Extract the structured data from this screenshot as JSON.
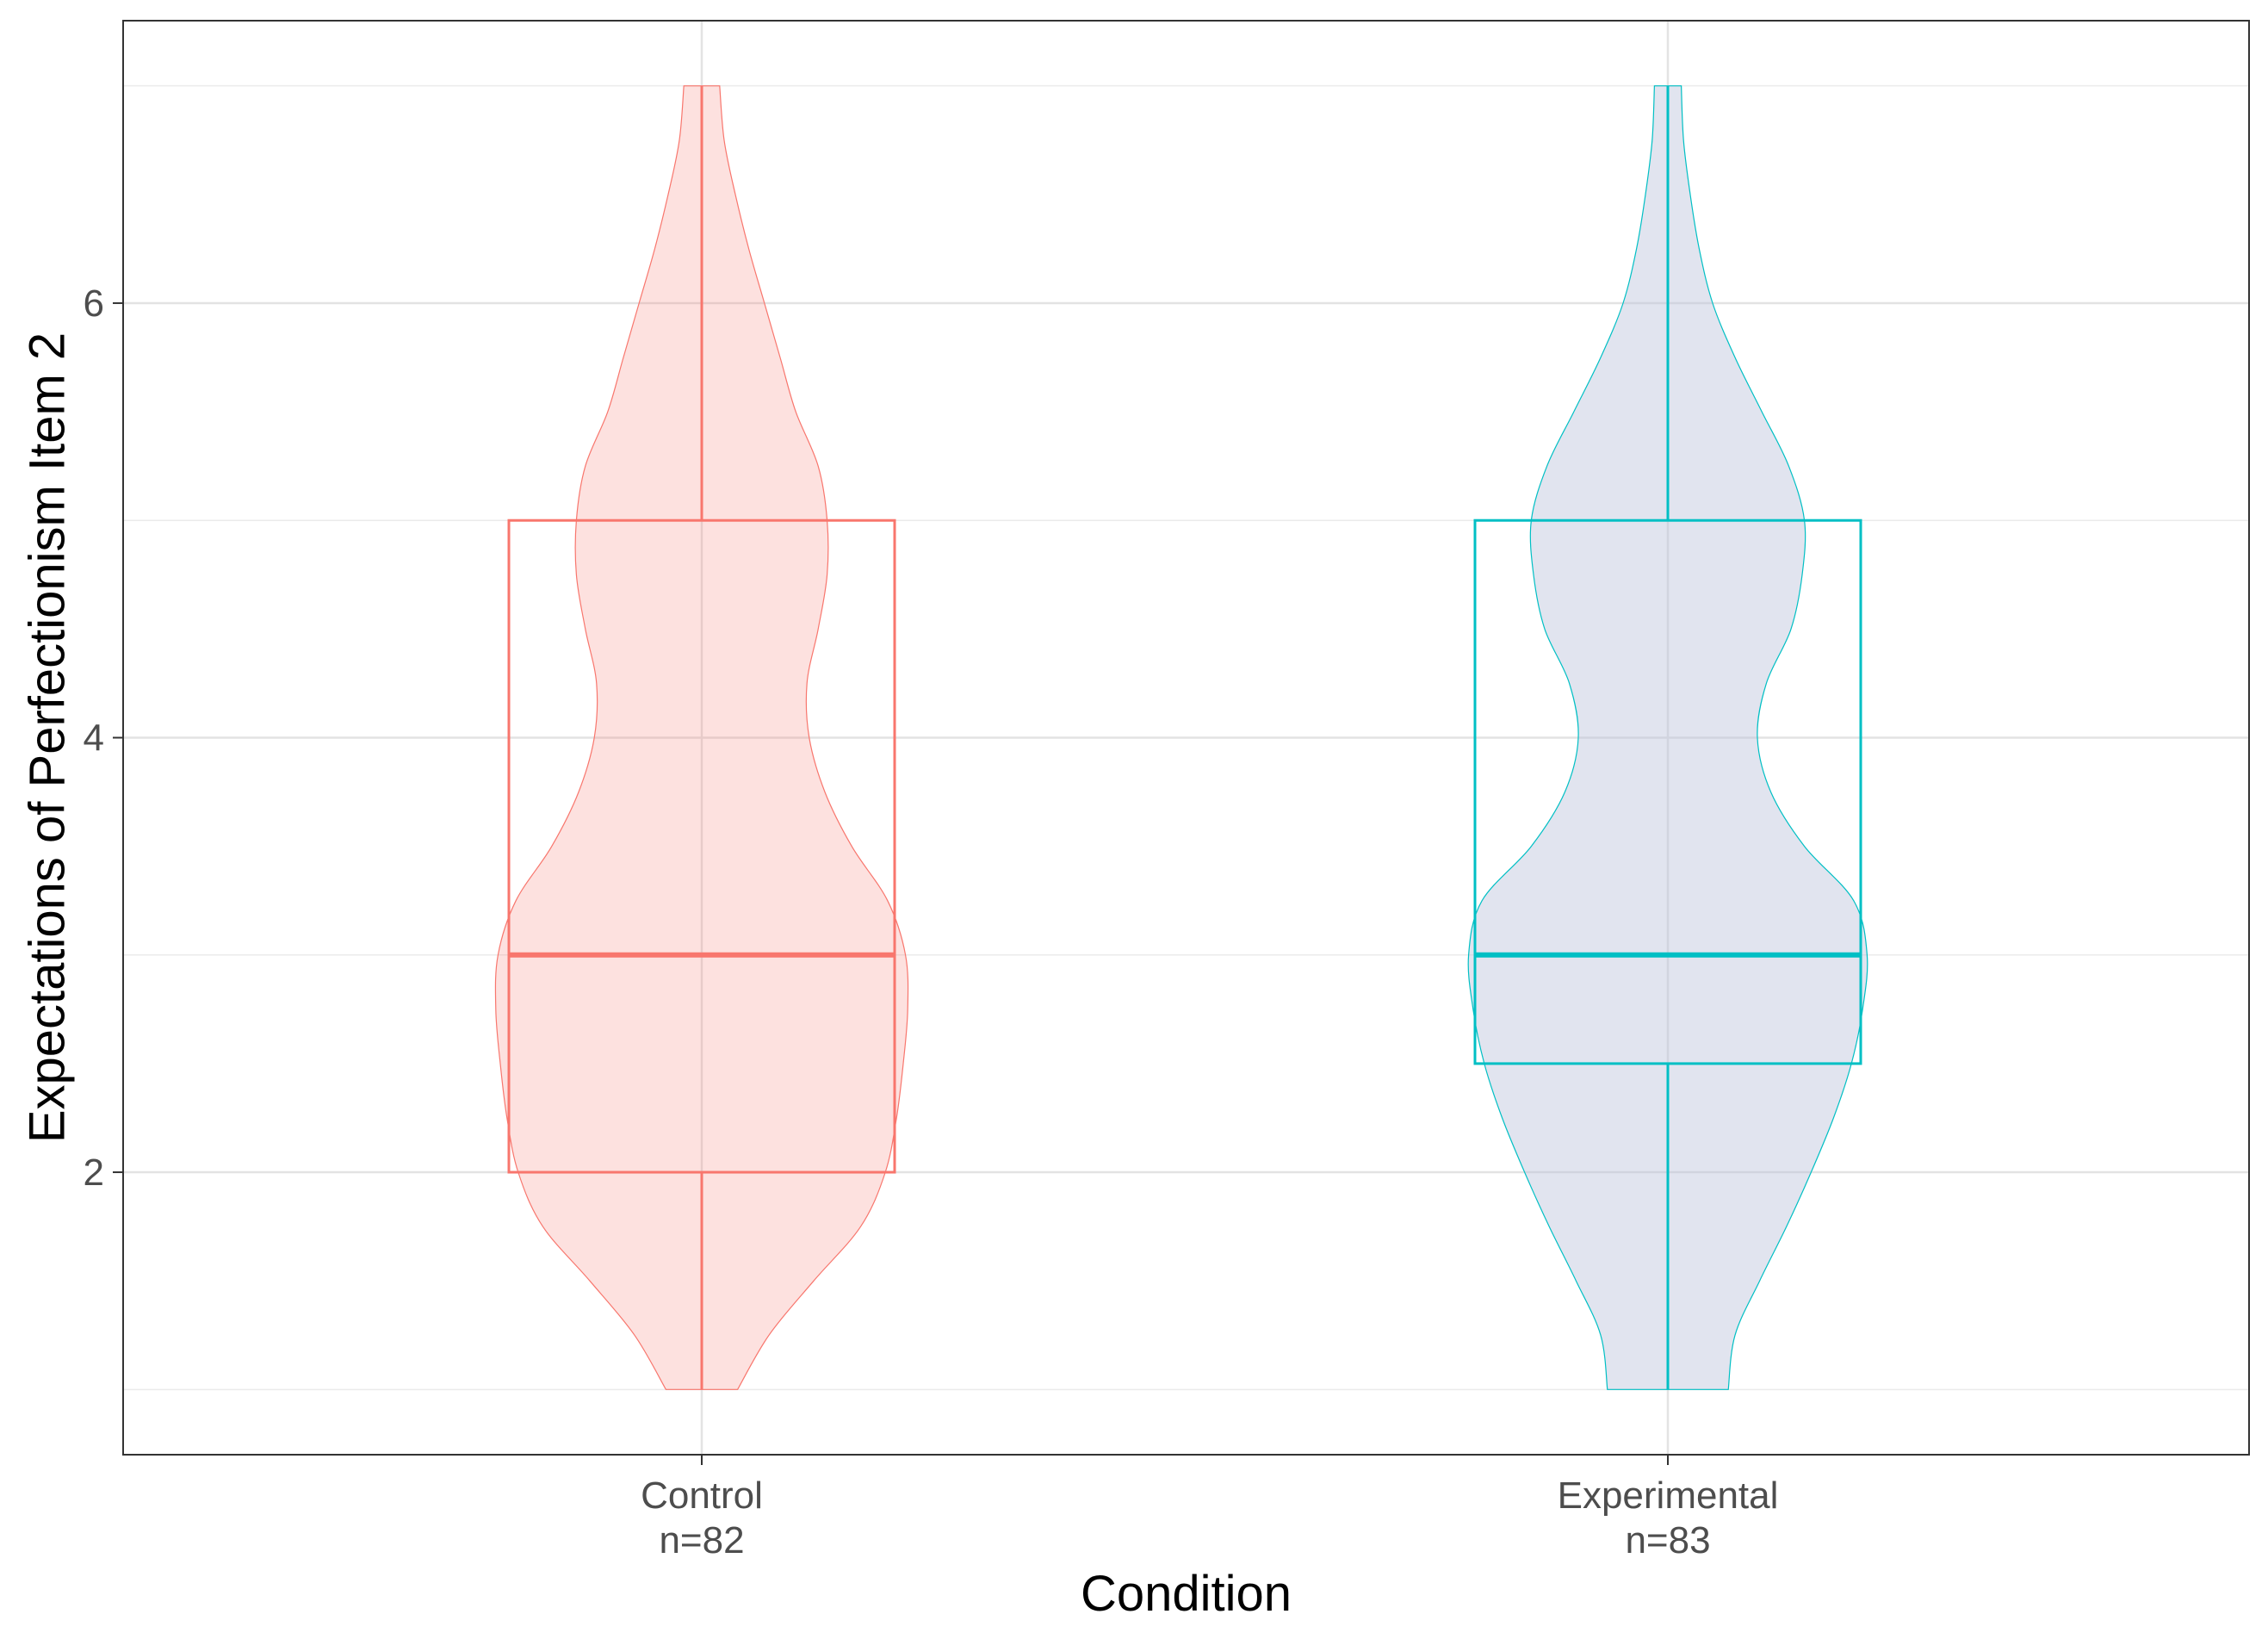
{
  "chart_data": {
    "type": "violin",
    "xlabel": "Condition",
    "ylabel": "Expectations of Perfectionism Item 2",
    "ylim": [
      0.7,
      7.3
    ],
    "y_ticks": [
      2,
      4,
      6
    ],
    "y_tick_labels": [
      "2",
      "4",
      "6"
    ],
    "y_minor_gridlines": [
      1,
      3,
      5,
      7
    ],
    "grid": true,
    "legend": "none",
    "categories": [
      "Control",
      "Experimental"
    ],
    "groups": [
      {
        "name": "Control",
        "count_label": "n=82",
        "color": "#F8766D",
        "fill": "#F8766D",
        "fill_opacity": 0.22,
        "box": {
          "whisker_low": 1,
          "q1": 2,
          "median": 3,
          "q3": 5,
          "whisker_high": 7
        },
        "density": [
          [
            1.0,
            0.16
          ],
          [
            1.25,
            0.3
          ],
          [
            1.5,
            0.5
          ],
          [
            1.75,
            0.71
          ],
          [
            2.0,
            0.82
          ],
          [
            2.25,
            0.87
          ],
          [
            2.5,
            0.9
          ],
          [
            2.75,
            0.92
          ],
          [
            3.0,
            0.91
          ],
          [
            3.25,
            0.83
          ],
          [
            3.5,
            0.67
          ],
          [
            3.75,
            0.55
          ],
          [
            4.0,
            0.48
          ],
          [
            4.25,
            0.47
          ],
          [
            4.5,
            0.52
          ],
          [
            4.75,
            0.56
          ],
          [
            5.0,
            0.56
          ],
          [
            5.25,
            0.52
          ],
          [
            5.5,
            0.42
          ],
          [
            5.75,
            0.35
          ],
          [
            6.0,
            0.28
          ],
          [
            6.25,
            0.21
          ],
          [
            6.5,
            0.15
          ],
          [
            6.75,
            0.1
          ],
          [
            7.0,
            0.08
          ]
        ]
      },
      {
        "name": "Experimental",
        "count_label": "n=83",
        "color": "#00BFC4",
        "fill": "#B8BFD8",
        "fill_opacity": 0.42,
        "box": {
          "whisker_low": 1,
          "q1": 2.5,
          "median": 3,
          "q3": 5,
          "whisker_high": 7
        },
        "density": [
          [
            1.0,
            0.27
          ],
          [
            1.25,
            0.3
          ],
          [
            1.5,
            0.41
          ],
          [
            1.75,
            0.53
          ],
          [
            2.0,
            0.64
          ],
          [
            2.25,
            0.74
          ],
          [
            2.5,
            0.82
          ],
          [
            2.75,
            0.87
          ],
          [
            3.0,
            0.89
          ],
          [
            3.25,
            0.83
          ],
          [
            3.5,
            0.61
          ],
          [
            3.75,
            0.46
          ],
          [
            4.0,
            0.4
          ],
          [
            4.25,
            0.44
          ],
          [
            4.5,
            0.55
          ],
          [
            4.75,
            0.6
          ],
          [
            5.0,
            0.61
          ],
          [
            5.25,
            0.54
          ],
          [
            5.5,
            0.42
          ],
          [
            5.75,
            0.3
          ],
          [
            6.0,
            0.2
          ],
          [
            6.25,
            0.14
          ],
          [
            6.5,
            0.1
          ],
          [
            6.75,
            0.07
          ],
          [
            7.0,
            0.06
          ]
        ]
      }
    ]
  }
}
